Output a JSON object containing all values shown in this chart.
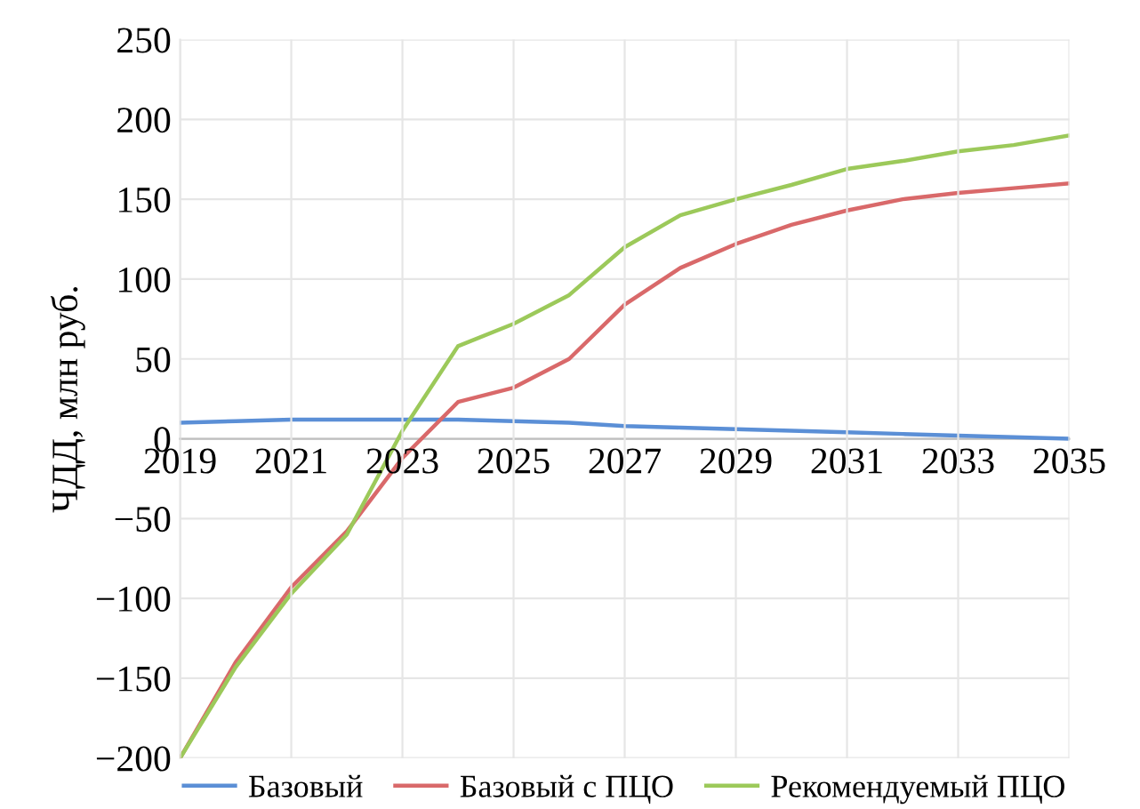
{
  "chart_data": {
    "type": "line",
    "ylabel": "ЧДД, млн руб.",
    "x": [
      2019,
      2020,
      2021,
      2022,
      2023,
      2024,
      2025,
      2026,
      2027,
      2028,
      2029,
      2030,
      2031,
      2032,
      2033,
      2034,
      2035
    ],
    "series": [
      {
        "name": "Базовый",
        "color": "#5b8fd6",
        "values": [
          10,
          11,
          12,
          12,
          12,
          12,
          11,
          10,
          8,
          7,
          6,
          5,
          4,
          3,
          2,
          1,
          0
        ]
      },
      {
        "name": "Базовый с ПЦО",
        "color": "#d9696a",
        "values": [
          -200,
          -140,
          -93,
          -58,
          -12,
          23,
          32,
          50,
          84,
          107,
          122,
          134,
          143,
          150,
          154,
          157,
          160
        ]
      },
      {
        "name": "Рекомендуемый ПЦО",
        "color": "#9cc95a",
        "values": [
          -200,
          -143,
          -97,
          -60,
          5,
          58,
          72,
          90,
          120,
          140,
          150,
          159,
          169,
          174,
          180,
          184,
          190
        ]
      }
    ],
    "xlim": [
      2019,
      2035
    ],
    "xticks": [
      2019,
      2021,
      2023,
      2025,
      2027,
      2029,
      2031,
      2033,
      2035
    ],
    "ylim": [
      -200,
      250
    ],
    "yticks": [
      {
        "value": -200,
        "label": "−200"
      },
      {
        "value": -150,
        "label": "−150"
      },
      {
        "value": -100,
        "label": "−100"
      },
      {
        "value": -50,
        "label": "−50"
      },
      0,
      50,
      100,
      150,
      200,
      250
    ],
    "grid": true,
    "legend": "bottom",
    "marker": "none",
    "line_style": "solid"
  }
}
